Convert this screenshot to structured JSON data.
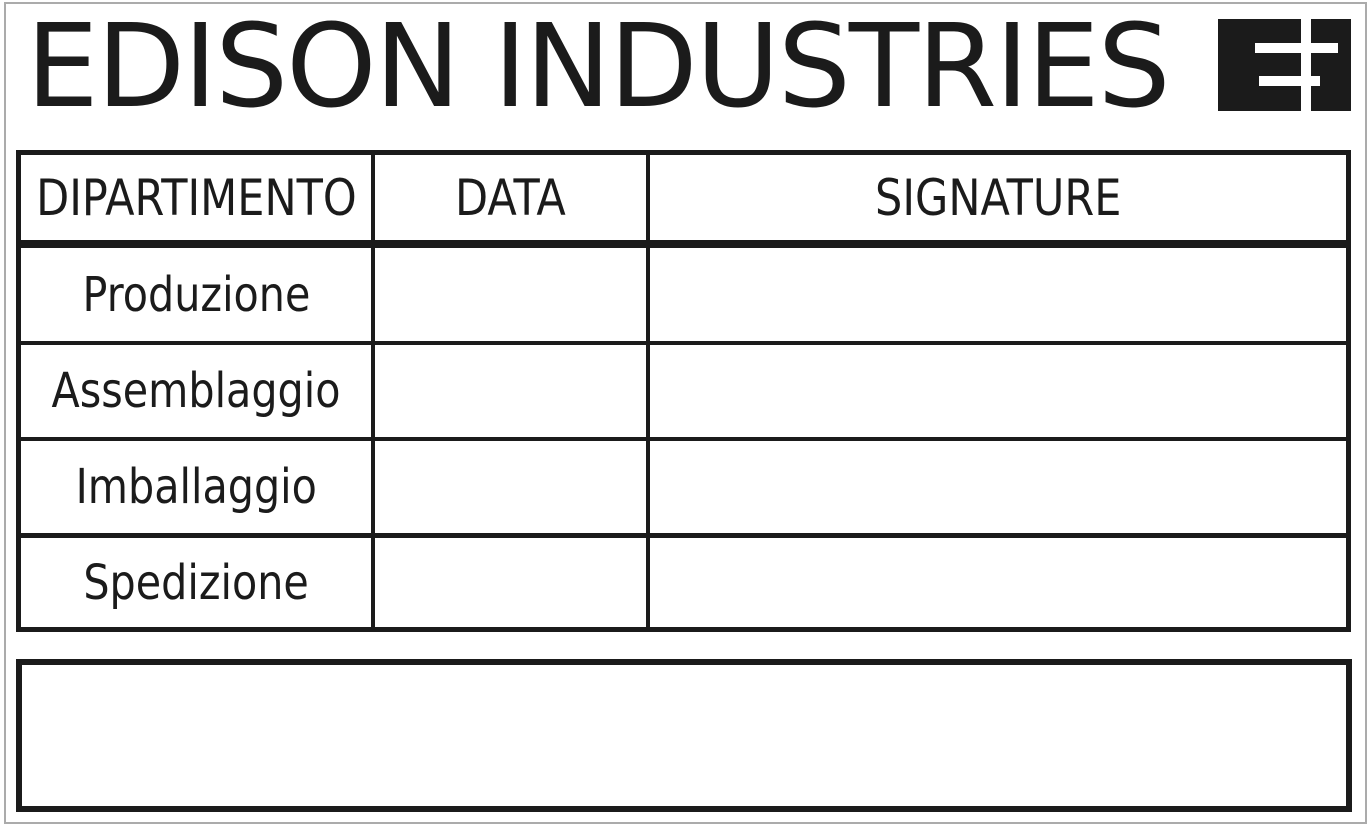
{
  "company": {
    "name": "EDISON INDUSTRIES"
  },
  "colors": {
    "ink": "#1b1b1b",
    "page_outline": "#ababab",
    "background": "#ffffff"
  },
  "table": {
    "headers": {
      "department": "DIPARTIMENTO",
      "date": "DATA",
      "signature": "SIGNATURE"
    },
    "rows": [
      {
        "department": "Produzione",
        "date": "",
        "signature": ""
      },
      {
        "department": "Assemblaggio",
        "date": "",
        "signature": ""
      },
      {
        "department": "Imballaggio",
        "date": "",
        "signature": ""
      },
      {
        "department": "Spedizione",
        "date": "",
        "signature": ""
      }
    ]
  },
  "notes_box": {
    "value": ""
  }
}
